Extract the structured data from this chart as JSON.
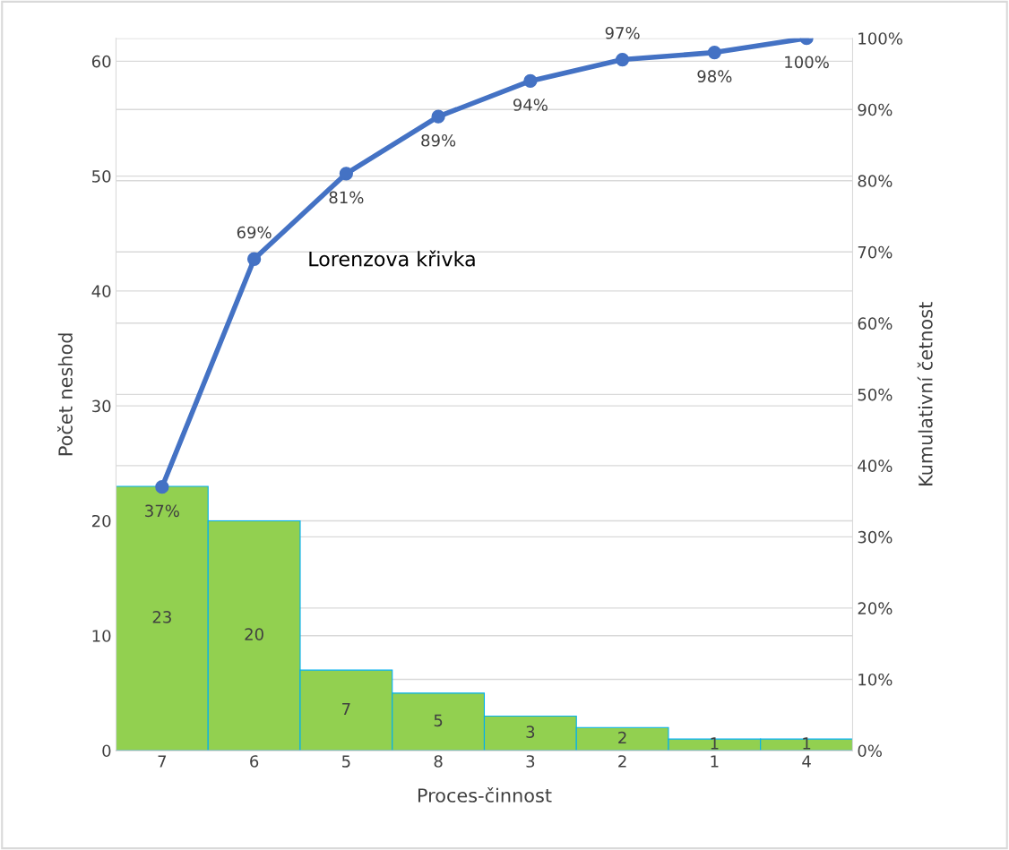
{
  "chart_data": {
    "type": "bar",
    "xlabel": "Proces-činnost",
    "ylabel": "Počet neshod",
    "y2label": "Kumulativní četnost",
    "categories": [
      "7",
      "6",
      "5",
      "8",
      "3",
      "2",
      "1",
      "4"
    ],
    "series": [
      {
        "color": "#92d050",
        "values": [
          23,
          20,
          7,
          5,
          3,
          2,
          1,
          1
        ],
        "data_labels": true
      },
      {
        "type": "line",
        "axis": "y2",
        "color": "#4472c4",
        "marker": "circle",
        "values": [
          37,
          69,
          81,
          89,
          94,
          97,
          98,
          100
        ],
        "value_labels": [
          "37%",
          "69%",
          "81%",
          "89%",
          "94%",
          "97%",
          "98%",
          "100%"
        ]
      }
    ],
    "ylim": [
      0,
      62
    ],
    "yticks": [
      0,
      10,
      20,
      30,
      40,
      50,
      60
    ],
    "y2lim": [
      0,
      100
    ],
    "y2ticks": [
      {
        "value": 0,
        "label": "0%"
      },
      {
        "value": 10,
        "label": "10%"
      },
      {
        "value": 20,
        "label": "20%"
      },
      {
        "value": 30,
        "label": "30%"
      },
      {
        "value": 40,
        "label": "40%"
      },
      {
        "value": 50,
        "label": "50%"
      },
      {
        "value": 60,
        "label": "60%"
      },
      {
        "value": 70,
        "label": "70%"
      },
      {
        "value": 80,
        "label": "80%"
      },
      {
        "value": 90,
        "label": "90%"
      },
      {
        "value": 100,
        "label": "100%"
      }
    ],
    "grid": true,
    "legend": false,
    "annotations": [
      "Lorenzova křivka"
    ]
  }
}
